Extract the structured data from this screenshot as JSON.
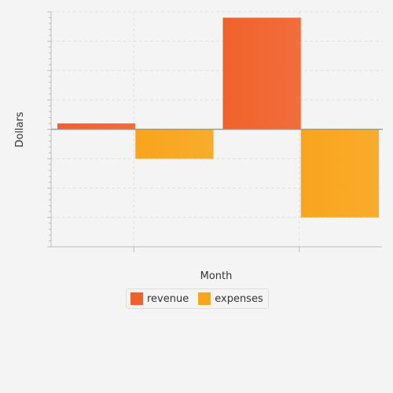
{
  "chart_data": {
    "type": "bar",
    "title": "",
    "xlabel": "Month",
    "ylabel": "Dollars",
    "categories": [
      "",
      ""
    ],
    "series": [
      {
        "name": "revenue",
        "values": [
          2,
          38
        ],
        "color": "#f0622c"
      },
      {
        "name": "expenses",
        "values": [
          -10,
          -30
        ],
        "color": "#f8a51c"
      }
    ],
    "ylim": [
      -40,
      40
    ],
    "grid": true,
    "legend_position": "bottom"
  },
  "colors": {
    "revenue": "#f0622c",
    "expenses": "#f8a51c",
    "grid": "#e0e0e0",
    "axis": "#bbbbbb",
    "zero_line": "#999999",
    "background": "#f4f4f4"
  }
}
